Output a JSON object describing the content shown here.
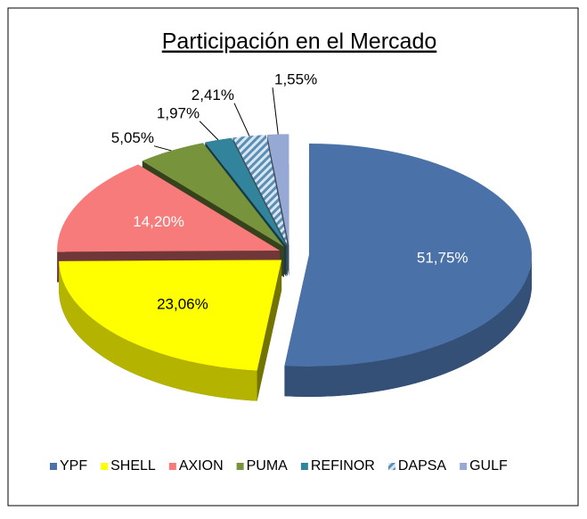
{
  "chart_data": {
    "type": "pie3d",
    "title": "Participación en el Mercado",
    "categories": [
      "YPF",
      "SHELL",
      "AXION",
      "PUMA",
      "REFINOR",
      "DAPSA",
      "GULF"
    ],
    "values": [
      51.75,
      23.06,
      14.2,
      5.05,
      1.97,
      2.41,
      1.55
    ],
    "value_labels": [
      "51,75%",
      "23,06%",
      "14,20%",
      "5,05%",
      "1,97%",
      "2,41%",
      "1,55%"
    ],
    "colors": [
      "#4a72a8",
      "#ffff00",
      "#f77b7b",
      "#77933c",
      "#31849b",
      "#8fb4d0",
      "#95a9d4"
    ],
    "hatched": [
      false,
      false,
      false,
      false,
      false,
      true,
      false
    ],
    "legend": "bottom"
  }
}
